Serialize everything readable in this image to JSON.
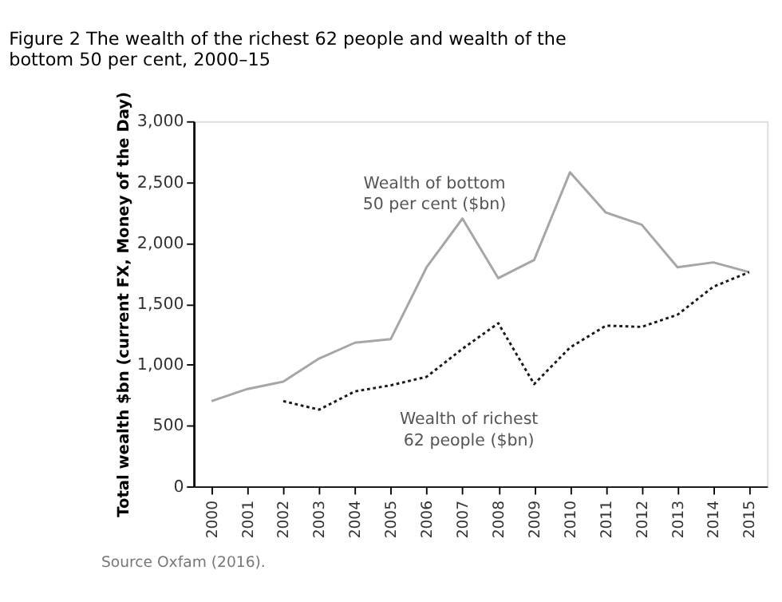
{
  "chart_data": {
    "type": "line",
    "title": "Figure 2 The wealth of the richest 62 people and wealth of the bottom 50 per cent, 2000–15",
    "categories": [
      "2000",
      "2001",
      "2002",
      "2003",
      "2004",
      "2005",
      "2006",
      "2007",
      "2008",
      "2009",
      "2010",
      "2011",
      "2012",
      "2013",
      "2014",
      "2015"
    ],
    "series": [
      {
        "name": "Wealth of bottom 50 per cent ($bn)",
        "color": "#a6a6a6",
        "line_style": "solid",
        "values": [
          700,
          800,
          860,
          1050,
          1180,
          1210,
          1800,
          2200,
          1710,
          1860,
          2580,
          2250,
          2150,
          1800,
          1840,
          1760
        ]
      },
      {
        "name": "Wealth of richest 62 people ($bn)",
        "color": "#1a1a1a",
        "line_style": "dotted",
        "values": [
          null,
          null,
          700,
          630,
          780,
          830,
          900,
          1130,
          1340,
          840,
          1140,
          1320,
          1310,
          1410,
          1640,
          1760
        ]
      }
    ],
    "ylabel": "Total wealth $bn (current FX, Money of the Day)",
    "ylim": [
      0,
      3000
    ],
    "yticks": [
      0,
      {
        "value": 500,
        "label": "500"
      },
      {
        "value": 1000,
        "label": "1,000"
      },
      {
        "value": 1500,
        "label": "1,500"
      },
      {
        "value": 2000,
        "label": "2,000"
      },
      {
        "value": 2500,
        "label": "2,500"
      },
      {
        "value": 3000,
        "label": "3,000"
      }
    ],
    "grid": false,
    "legend": false,
    "marker": "none",
    "annotations": [
      "Source Oxfam (2016)."
    ]
  }
}
